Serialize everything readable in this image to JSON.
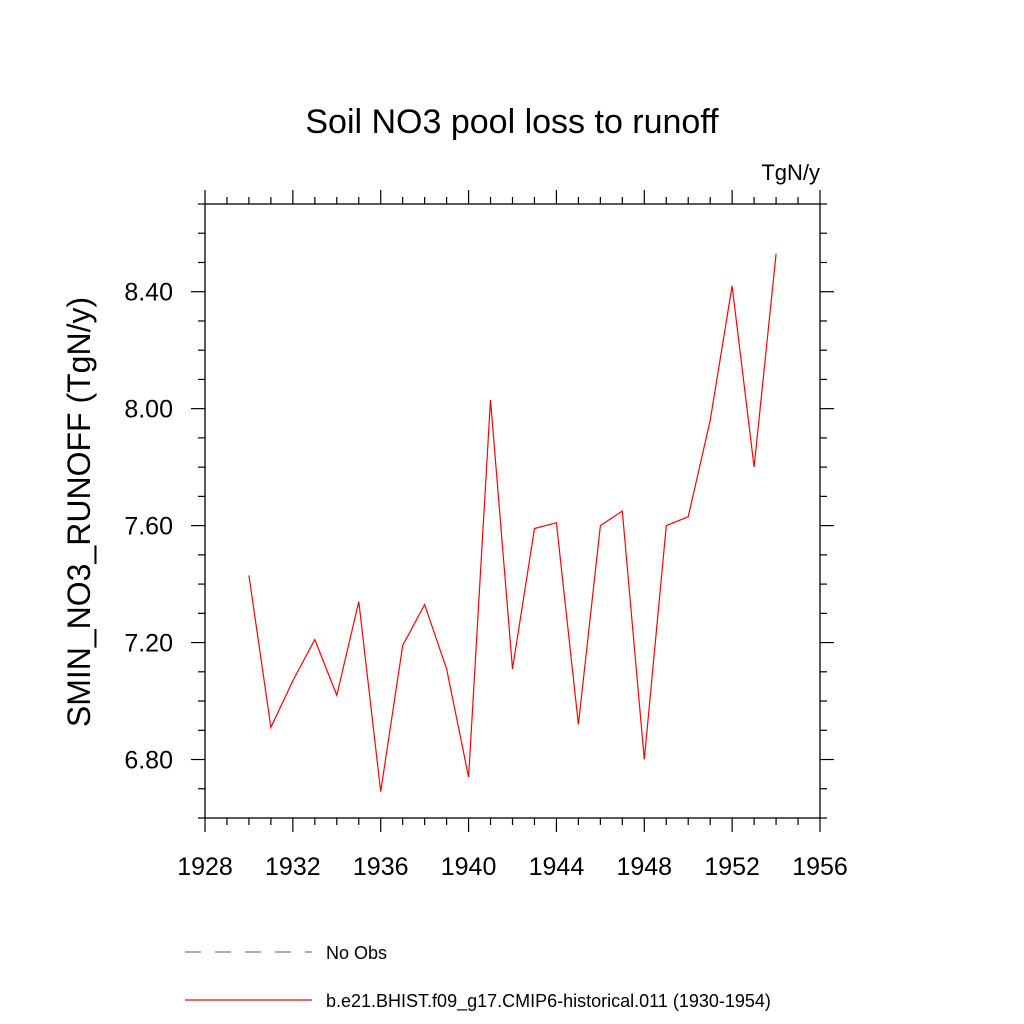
{
  "chart_data": {
    "type": "line",
    "title": "Soil NO3 pool loss to runoff",
    "units_label": "TgN/y",
    "ylabel": "SMIN_NO3_RUNOFF  (TgN/y)",
    "xlabel": "",
    "xlim": [
      1928,
      1956
    ],
    "ylim": [
      6.6,
      8.7
    ],
    "x_ticks": [
      "1928",
      "1932",
      "1936",
      "1940",
      "1944",
      "1948",
      "1952",
      "1956"
    ],
    "y_ticks": [
      "6.80",
      "7.20",
      "7.60",
      "8.00",
      "8.40"
    ],
    "series": [
      {
        "name": "b.e21.BHIST.f09_g17.CMIP6-historical.011 (1930-1954)",
        "color": "#ff0000",
        "style": "solid",
        "x": [
          1930,
          1931,
          1932,
          1933,
          1934,
          1935,
          1936,
          1937,
          1938,
          1939,
          1940,
          1941,
          1942,
          1943,
          1944,
          1945,
          1946,
          1947,
          1948,
          1949,
          1950,
          1951,
          1952,
          1953,
          1954
        ],
        "y": [
          7.43,
          6.91,
          7.07,
          7.21,
          7.02,
          7.34,
          6.69,
          7.19,
          7.33,
          7.11,
          6.74,
          8.03,
          7.11,
          7.59,
          7.61,
          6.92,
          7.6,
          7.65,
          6.8,
          7.6,
          7.63,
          7.96,
          8.42,
          7.8,
          8.53
        ]
      }
    ],
    "legend": [
      {
        "label": "No Obs",
        "color": "#7a7ab8",
        "style": "dashed"
      },
      {
        "label": "b.e21.BHIST.f09_g17.CMIP6-historical.011 (1930-1954)",
        "color": "#ff0000",
        "style": "solid"
      }
    ],
    "legend_position": "bottom",
    "grid": false
  }
}
